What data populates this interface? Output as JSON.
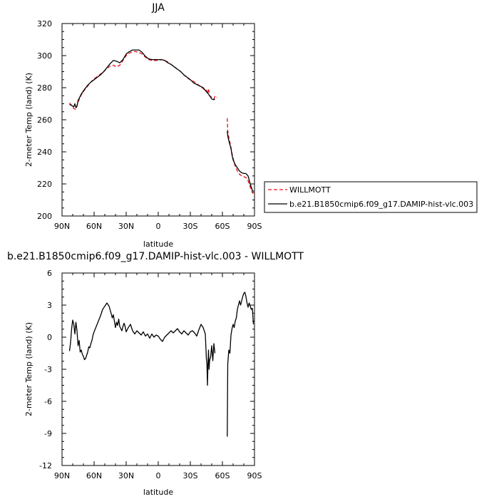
{
  "chart_data": [
    {
      "type": "line",
      "title": "JJA",
      "xlabel": "latitude",
      "ylabel": "2-meter Temp (land) (K)",
      "xlim": [
        90,
        -90
      ],
      "ylim": [
        200,
        320
      ],
      "xticks": [
        90,
        60,
        30,
        0,
        -30,
        -60,
        -90
      ],
      "xtick_labels": [
        "90N",
        "60N",
        "30N",
        "0",
        "30S",
        "60S",
        "90S"
      ],
      "yticks": [
        200,
        220,
        240,
        260,
        280,
        300,
        320
      ],
      "ytick_labels": [
        "200",
        "220",
        "240",
        "260",
        "280",
        "300",
        "320"
      ],
      "grid": false,
      "legend_position": "right",
      "series": [
        {
          "name": "WILLMOTT",
          "color": "#e8101a",
          "dash": "dashed",
          "segments": [
            {
              "x": [
                83,
                81,
                79,
                77,
                75,
                72,
                69,
                66,
                63,
                60,
                57,
                54,
                51,
                48,
                45,
                42,
                39,
                36,
                33,
                30,
                27,
                24,
                21,
                18,
                15,
                12,
                9,
                6,
                3,
                0,
                -3,
                -6,
                -9,
                -12,
                -15,
                -18,
                -21,
                -24,
                -27,
                -30,
                -33,
                -36,
                -39,
                -42,
                -44,
                -45,
                -46,
                -47,
                -48,
                -50,
                -52,
                -53,
                -54,
                -55
              ],
              "y": [
                270.5,
                269,
                267,
                266.5,
                271,
                275.5,
                278.5,
                281,
                283.5,
                285.5,
                287,
                288.5,
                290,
                292,
                293.5,
                294,
                293,
                294,
                297,
                300,
                301.5,
                302.5,
                302.5,
                302,
                301,
                299,
                297.5,
                297,
                297,
                297,
                297.5,
                297,
                296,
                294.5,
                293,
                291.5,
                290,
                288,
                286,
                285,
                284,
                282.5,
                281,
                279.5,
                278,
                278.5,
                276,
                279.5,
                275,
                274,
                273,
                274.5,
                273.5,
                274
              ]
            },
            {
              "x": [
                -64.5,
                -65,
                -66,
                -67,
                -68,
                -69,
                -70,
                -72,
                -74,
                -76,
                -78,
                -80,
                -82,
                -84,
                -86,
                -88,
                -89
              ],
              "y": [
                261,
                253,
                249,
                246,
                243,
                239,
                236,
                231,
                228,
                226,
                225,
                224.5,
                224,
                222,
                218,
                214.5,
                214
              ]
            }
          ]
        },
        {
          "name": "b.e21.B1850cmip6.f09_g17.DAMIP-hist-vlc.003",
          "color": "#000000",
          "dash": "solid",
          "segments": [
            {
              "x": [
                83,
                81,
                79,
                78,
                77,
                76,
                75,
                72,
                69,
                66,
                63,
                60,
                57,
                54,
                51,
                48,
                45,
                42,
                39,
                36,
                33,
                30,
                27,
                24,
                21,
                18,
                15,
                12,
                9,
                6,
                3,
                0,
                -3,
                -6,
                -9,
                -12,
                -15,
                -18,
                -21,
                -24,
                -27,
                -30,
                -33,
                -36,
                -39,
                -42,
                -45,
                -47,
                -48,
                -49,
                -50,
                -52,
                -53
              ],
              "y": [
                269.5,
                269,
                268,
                270,
                267.5,
                268.5,
                272,
                276,
                279,
                281.5,
                283.5,
                285,
                286.5,
                288,
                290,
                292.5,
                295,
                297,
                296.5,
                295.5,
                297.5,
                301,
                302.5,
                303.5,
                303.5,
                303.5,
                302,
                299.5,
                298,
                297.5,
                297.5,
                297.5,
                297.5,
                297,
                295.5,
                294.5,
                293,
                291.5,
                290,
                288,
                286.5,
                285,
                283,
                282,
                281,
                280,
                277.5,
                276,
                275,
                274,
                273,
                272.5,
                273
              ]
            },
            {
              "x": [
                -64.5,
                -65,
                -66,
                -67,
                -68,
                -69,
                -70,
                -72,
                -74,
                -76,
                -78,
                -80,
                -82,
                -84,
                -86,
                -88,
                -89
              ],
              "y": [
                253,
                250,
                247,
                244.5,
                242,
                238,
                235,
                232,
                230,
                228,
                227,
                226.5,
                226.5,
                225,
                220,
                216,
                215.5
              ]
            }
          ]
        }
      ]
    },
    {
      "type": "line",
      "title": "b.e21.B1850cmip6.f09_g17.DAMIP-hist-vlc.003 - WILLMOTT",
      "xlabel": "latitude",
      "ylabel": "2-meter Temp (land) (K)",
      "xlim": [
        90,
        -90
      ],
      "ylim": [
        -12,
        6
      ],
      "xticks": [
        90,
        60,
        30,
        0,
        -30,
        -60,
        -90
      ],
      "xtick_labels": [
        "90N",
        "60N",
        "30N",
        "0",
        "30S",
        "60S",
        "90S"
      ],
      "yticks": [
        -12,
        -9,
        -6,
        -3,
        0,
        3,
        6
      ],
      "ytick_labels": [
        "-12",
        "-9",
        "-6",
        "-3",
        "0",
        "3",
        "6"
      ],
      "grid": false,
      "series": [
        {
          "color": "#000000",
          "dash": "solid",
          "segments": [
            {
              "x": [
                83,
                82,
                81,
                80,
                79,
                78,
                77,
                76,
                75,
                74,
                73,
                72,
                71,
                70,
                69,
                68,
                67,
                66,
                65,
                64,
                63,
                62,
                61,
                60,
                58,
                56,
                54,
                52,
                50,
                48,
                46,
                44,
                43,
                42,
                41,
                40,
                39,
                38,
                37,
                36,
                35,
                34,
                33,
                32,
                31,
                30,
                28,
                26,
                24,
                22,
                20,
                18,
                16,
                14,
                12,
                10,
                8,
                6,
                4,
                2,
                0,
                -2,
                -4,
                -6,
                -8,
                -10,
                -12,
                -14,
                -16,
                -18,
                -20,
                -22,
                -24,
                -26,
                -28,
                -30,
                -32,
                -34,
                -36,
                -38,
                -40,
                -42,
                -43,
                -44,
                -45,
                -45.5,
                -46,
                -46.5,
                -47,
                -47.5,
                -48,
                -49,
                -50,
                -51,
                -52,
                -53
              ],
              "y": [
                -1.3,
                -0.5,
                0.8,
                1.6,
                1.2,
                0.3,
                1.4,
                0.6,
                -0.8,
                -0.3,
                -1.4,
                -1.2,
                -1.6,
                -1.8,
                -2.1,
                -2.0,
                -1.7,
                -1.4,
                -0.9,
                -1.0,
                -0.6,
                -0.3,
                0.2,
                0.5,
                1.0,
                1.5,
                2.0,
                2.6,
                2.9,
                3.2,
                2.9,
                2.2,
                1.8,
                2.1,
                1.5,
                0.9,
                1.4,
                1.1,
                1.7,
                1.0,
                0.8,
                0.6,
                1.0,
                1.3,
                1.0,
                0.5,
                0.9,
                1.2,
                0.6,
                0.3,
                0.6,
                0.4,
                0.2,
                0.5,
                0.1,
                0.3,
                -0.1,
                0.3,
                0.0,
                0.2,
                0.1,
                -0.2,
                -0.4,
                0.0,
                0.2,
                0.4,
                0.6,
                0.4,
                0.6,
                0.8,
                0.5,
                0.3,
                0.6,
                0.4,
                0.2,
                0.5,
                0.6,
                0.4,
                0.1,
                0.7,
                1.2,
                0.9,
                0.6,
                0.3,
                -2.0,
                -2.5,
                -4.5,
                -2.5,
                -1.2,
                -3.0,
                -2.2,
                -1.8,
                -0.8,
                -2.2,
                -0.6,
                -1.5
              ]
            },
            {
              "x": [
                -64.5,
                -65,
                -66,
                -67,
                -68,
                -69,
                -70,
                -71,
                -72,
                -73,
                -74,
                -75,
                -76,
                -77,
                -78,
                -79,
                -80,
                -81,
                -82,
                -83,
                -84,
                -85,
                -86,
                -87,
                -88,
                -89
              ],
              "y": [
                -9.3,
                -2.5,
                -1.2,
                -1.5,
                0.2,
                0.8,
                1.2,
                0.9,
                1.5,
                1.8,
                2.6,
                3.0,
                3.4,
                3.0,
                3.4,
                3.8,
                4.1,
                4.2,
                3.8,
                3.2,
                2.8,
                3.2,
                2.9,
                2.6,
                2.7,
                1.2
              ]
            }
          ]
        }
      ]
    }
  ]
}
